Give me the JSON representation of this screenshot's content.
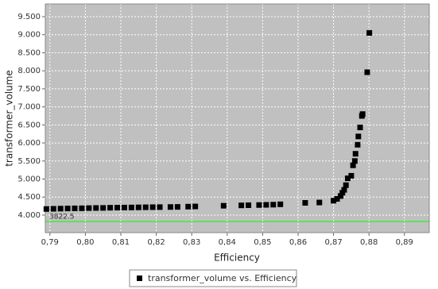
{
  "chart_data": {
    "type": "scatter",
    "x_label": "Efficiency",
    "y_label": "transformer_volume",
    "xlim": [
      0.7887,
      0.897
    ],
    "ylim": [
      3515,
      9852
    ],
    "xticks": [
      {
        "value": 0.79,
        "label": "0,79"
      },
      {
        "value": 0.8,
        "label": "0,80"
      },
      {
        "value": 0.81,
        "label": "0,81"
      },
      {
        "value": 0.82,
        "label": "0,82"
      },
      {
        "value": 0.83,
        "label": "0,83"
      },
      {
        "value": 0.84,
        "label": "0,84"
      },
      {
        "value": 0.85,
        "label": "0,85"
      },
      {
        "value": 0.86,
        "label": "0,86"
      },
      {
        "value": 0.87,
        "label": "0,87"
      },
      {
        "value": 0.88,
        "label": "0,88"
      },
      {
        "value": 0.89,
        "label": "0,89"
      }
    ],
    "yticks": [
      {
        "value": 4000,
        "label": "4.000"
      },
      {
        "value": 4500,
        "label": "4.500"
      },
      {
        "value": 5000,
        "label": "5.000"
      },
      {
        "value": 5500,
        "label": "5.500"
      },
      {
        "value": 6000,
        "label": "6.000"
      },
      {
        "value": 6500,
        "label": "6.500"
      },
      {
        "value": 7000,
        "label": "7.000"
      },
      {
        "value": 7500,
        "label": "7.500"
      },
      {
        "value": 8000,
        "label": "8.000"
      },
      {
        "value": 8500,
        "label": "8.500"
      },
      {
        "value": 9000,
        "label": "9.000"
      },
      {
        "value": 9500,
        "label": "9.500"
      }
    ],
    "grid": true,
    "plot_background": "#c0c0c0",
    "reference_line": {
      "value": 3822.5,
      "color": "#00ff00"
    },
    "series": [
      {
        "name": "transformer_volume vs. Efficiency",
        "color": "#000000",
        "x": [
          0.789,
          0.791,
          0.793,
          0.795,
          0.797,
          0.799,
          0.801,
          0.803,
          0.805,
          0.807,
          0.809,
          0.811,
          0.813,
          0.815,
          0.817,
          0.819,
          0.821,
          0.824,
          0.826,
          0.829,
          0.831,
          0.839,
          0.844,
          0.846,
          0.849,
          0.851,
          0.853,
          0.855,
          0.862,
          0.866,
          0.87,
          0.871,
          0.872,
          0.8725,
          0.873,
          0.8735,
          0.874,
          0.875,
          0.8755,
          0.876,
          0.8762,
          0.8768,
          0.877,
          0.8775,
          0.878,
          0.8782,
          0.8795,
          0.8801
        ],
        "values": [
          4170,
          4175,
          4180,
          4185,
          4188,
          4190,
          4195,
          4198,
          4200,
          4205,
          4208,
          4210,
          4212,
          4215,
          4218,
          4220,
          4222,
          4225,
          4228,
          4235,
          4240,
          4260,
          4270,
          4275,
          4280,
          4285,
          4290,
          4300,
          4340,
          4350,
          4400,
          4450,
          4530,
          4620,
          4700,
          4830,
          5020,
          5090,
          5380,
          5500,
          5700,
          5950,
          6180,
          6430,
          6750,
          6800,
          7960,
          9050
        ]
      }
    ]
  }
}
